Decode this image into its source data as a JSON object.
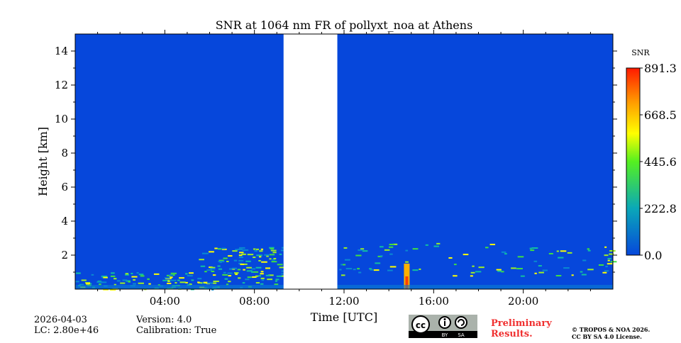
{
  "chart_data": {
    "type": "heatmap",
    "title": "SNR at 1064 nm FR of pollyxt_noa at Athens",
    "xlabel": "Time [UTC]",
    "ylabel": "Height [km]",
    "xlim_hours": [
      0,
      24
    ],
    "ylim_km": [
      0,
      15
    ],
    "x_ticks": [
      {
        "h": 4,
        "label": "04:00"
      },
      {
        "h": 8,
        "label": "08:00"
      },
      {
        "h": 12,
        "label": "12:00"
      },
      {
        "h": 16,
        "label": "16:00"
      },
      {
        "h": 20,
        "label": "20:00"
      }
    ],
    "y_ticks": [
      2,
      4,
      6,
      8,
      10,
      12,
      14
    ],
    "no_data_interval_hours": [
      9.3,
      11.7
    ],
    "colorbar": {
      "label": "SNR",
      "min": 0.0,
      "max": 891.3,
      "ticks": [
        "0.0",
        "222.8",
        "445.6",
        "668.5",
        "891.3"
      ]
    },
    "background_color": "#0647db",
    "features": [
      {
        "name": "boundary layer aerosol",
        "start_h": 0,
        "end_h": 9.3,
        "top_km": 1.0
      },
      {
        "name": "aerosol layer",
        "start_h": 5.5,
        "end_h": 9.3,
        "top_km": 2.5
      },
      {
        "name": "aerosol layer",
        "start_h": 11.7,
        "end_h": 24,
        "top_km": 2.8
      },
      {
        "name": "strong signal spike",
        "time_h": 14.8,
        "top_km": 1.5
      }
    ]
  },
  "footer": {
    "date": "2026-04-03",
    "lc": "LC: 2.80e+46",
    "version": "Version: 4.0",
    "calibration": "Calibration: True",
    "preliminary_1": "Preliminary",
    "preliminary_2": "Results.",
    "copyright_1": "© TROPOS & NOA 2026.",
    "copyright_2": "CC BY SA 4.0 License.",
    "license_logo": "cc by sa"
  }
}
